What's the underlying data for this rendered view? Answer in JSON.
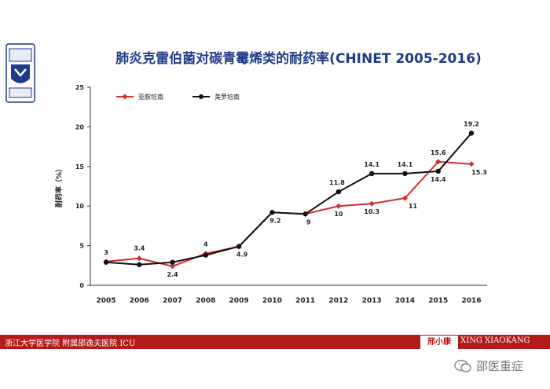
{
  "slide": {
    "title": "肺炎克雷伯菌对碳青霉烯类的耐药率(CHINET 2005-2016)",
    "footer_left": "浙江大学医学院 附属邵逸夫医院 ICU",
    "footer_badge": "邢小康",
    "footer_right": "XING XIAOKANG",
    "watermark": "邵医重症",
    "accent_red": "#b31b1b",
    "title_blue": "#1f3c88"
  },
  "chart_data": {
    "type": "line",
    "title": "",
    "xlabel": "",
    "ylabel": "耐药率（%）",
    "categories": [
      "2005",
      "2006",
      "2007",
      "2008",
      "2009",
      "2010",
      "2011",
      "2012",
      "2013",
      "2014",
      "2015",
      "2016"
    ],
    "ylim": [
      0,
      25
    ],
    "yticks": [
      0,
      5,
      10,
      15,
      20,
      25
    ],
    "grid": false,
    "legend_position": "top-left",
    "series": [
      {
        "name": "亚胺培南",
        "color": "#d62b2b",
        "marker": "diamond",
        "values": [
          3.0,
          3.4,
          2.4,
          4.0,
          4.9,
          9.2,
          9.0,
          10.0,
          10.3,
          11.0,
          15.6,
          15.3
        ],
        "labels": [
          "3",
          "3.4",
          "2.4",
          "4",
          "",
          "",
          "",
          "10",
          "10.3",
          "11",
          "15.6",
          "15.3"
        ]
      },
      {
        "name": "美罗培南",
        "color": "#111111",
        "marker": "circle",
        "values": [
          2.9,
          2.6,
          2.9,
          3.8,
          4.9,
          9.2,
          9.0,
          11.8,
          14.1,
          14.1,
          14.4,
          19.2
        ],
        "labels": [
          "",
          "",
          "",
          "",
          "4.9",
          "9.2",
          "9",
          "11.8",
          "14.1",
          "14.1",
          "14.4",
          "19.2"
        ]
      }
    ]
  }
}
